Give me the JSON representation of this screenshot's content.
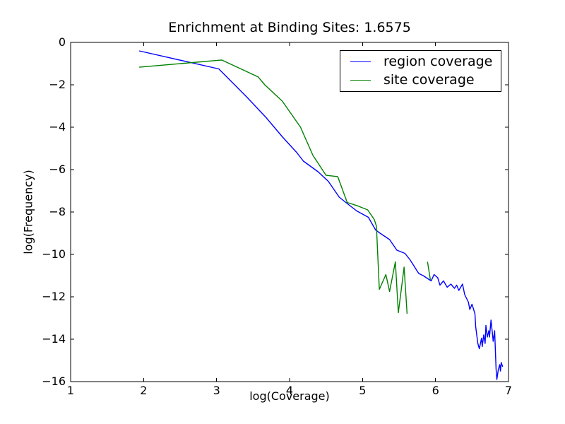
{
  "figure": {
    "background": "#ffffff"
  },
  "chart_data": {
    "type": "line",
    "title": "Enrichment at Binding Sites: 1.6575",
    "xlabel": "log(Coverage)",
    "ylabel": "log(Frequency)",
    "xlim": [
      1,
      7
    ],
    "ylim": [
      -16,
      0
    ],
    "xticks": [
      1,
      2,
      3,
      4,
      5,
      6,
      7
    ],
    "xtick_labels": [
      "1",
      "2",
      "3",
      "4",
      "5",
      "6",
      "7"
    ],
    "yticks": [
      0,
      -2,
      -4,
      -6,
      -8,
      -10,
      -12,
      -14,
      -16
    ],
    "ytick_labels": [
      "0",
      "−2",
      "−4",
      "−6",
      "−8",
      "−10",
      "−12",
      "−14",
      "−16"
    ],
    "grid": false,
    "axes_color": "#000000",
    "legend": {
      "location": "upper right",
      "border_color": "#000000",
      "entries": [
        "region coverage",
        "site coverage"
      ]
    },
    "series": [
      {
        "name": "region coverage",
        "color": "#0000ff",
        "segments": [
          [
            [
              1.94,
              -0.4
            ],
            [
              3.03,
              -1.25
            ],
            [
              3.42,
              -2.6
            ],
            [
              3.68,
              -3.55
            ],
            [
              3.9,
              -4.45
            ],
            [
              4.1,
              -5.2
            ],
            [
              4.19,
              -5.6
            ],
            [
              4.39,
              -6.1
            ],
            [
              4.53,
              -6.55
            ],
            [
              4.68,
              -7.3
            ],
            [
              4.79,
              -7.6
            ],
            [
              4.92,
              -7.95
            ],
            [
              5.08,
              -8.25
            ],
            [
              5.18,
              -8.85
            ],
            [
              5.24,
              -9.0
            ],
            [
              5.37,
              -9.3
            ],
            [
              5.47,
              -9.8
            ],
            [
              5.58,
              -9.95
            ],
            [
              5.65,
              -10.25
            ],
            [
              5.77,
              -10.9
            ],
            [
              5.83,
              -11.0
            ],
            [
              5.94,
              -11.25
            ],
            [
              5.98,
              -10.95
            ],
            [
              6.03,
              -11.1
            ],
            [
              6.06,
              -11.45
            ],
            [
              6.11,
              -11.25
            ],
            [
              6.16,
              -11.55
            ],
            [
              6.21,
              -11.4
            ],
            [
              6.26,
              -11.6
            ],
            [
              6.29,
              -11.45
            ],
            [
              6.32,
              -11.7
            ],
            [
              6.37,
              -11.4
            ],
            [
              6.4,
              -11.9
            ],
            [
              6.45,
              -12.25
            ],
            [
              6.47,
              -12.6
            ],
            [
              6.5,
              -12.35
            ],
            [
              6.54,
              -12.8
            ],
            [
              6.55,
              -13.4
            ],
            [
              6.58,
              -14.2
            ],
            [
              6.6,
              -14.45
            ],
            [
              6.63,
              -13.95
            ],
            [
              6.64,
              -14.35
            ],
            [
              6.66,
              -13.8
            ],
            [
              6.68,
              -14.2
            ],
            [
              6.69,
              -13.35
            ],
            [
              6.71,
              -13.9
            ],
            [
              6.73,
              -13.6
            ],
            [
              6.74,
              -13.9
            ],
            [
              6.76,
              -13.1
            ],
            [
              6.78,
              -13.75
            ],
            [
              6.79,
              -14.1
            ],
            [
              6.81,
              -13.6
            ],
            [
              6.83,
              -15.4
            ],
            [
              6.84,
              -15.9
            ],
            [
              6.86,
              -15.45
            ],
            [
              6.88,
              -15.2
            ],
            [
              6.89,
              -15.5
            ],
            [
              6.9,
              -15.1
            ],
            [
              6.92,
              -15.3
            ]
          ]
        ]
      },
      {
        "name": "site coverage",
        "color": "#008000",
        "segments": [
          [
            [
              1.94,
              -1.17
            ],
            [
              3.07,
              -0.83
            ],
            [
              3.57,
              -1.63
            ],
            [
              3.66,
              -2.0
            ],
            [
              3.9,
              -2.77
            ],
            [
              4.15,
              -4.0
            ],
            [
              4.32,
              -5.33
            ],
            [
              4.5,
              -6.27
            ],
            [
              4.66,
              -6.33
            ],
            [
              4.79,
              -7.55
            ],
            [
              4.94,
              -7.72
            ],
            [
              5.07,
              -7.9
            ],
            [
              5.16,
              -8.35
            ],
            [
              5.19,
              -8.67
            ],
            [
              5.23,
              -11.65
            ],
            [
              5.32,
              -10.95
            ],
            [
              5.37,
              -11.75
            ],
            [
              5.45,
              -10.35
            ],
            [
              5.49,
              -12.75
            ],
            [
              5.57,
              -10.6
            ],
            [
              5.61,
              -12.8
            ]
          ],
          [
            [
              5.89,
              -10.35
            ],
            [
              5.93,
              -11.2
            ]
          ]
        ]
      }
    ]
  }
}
